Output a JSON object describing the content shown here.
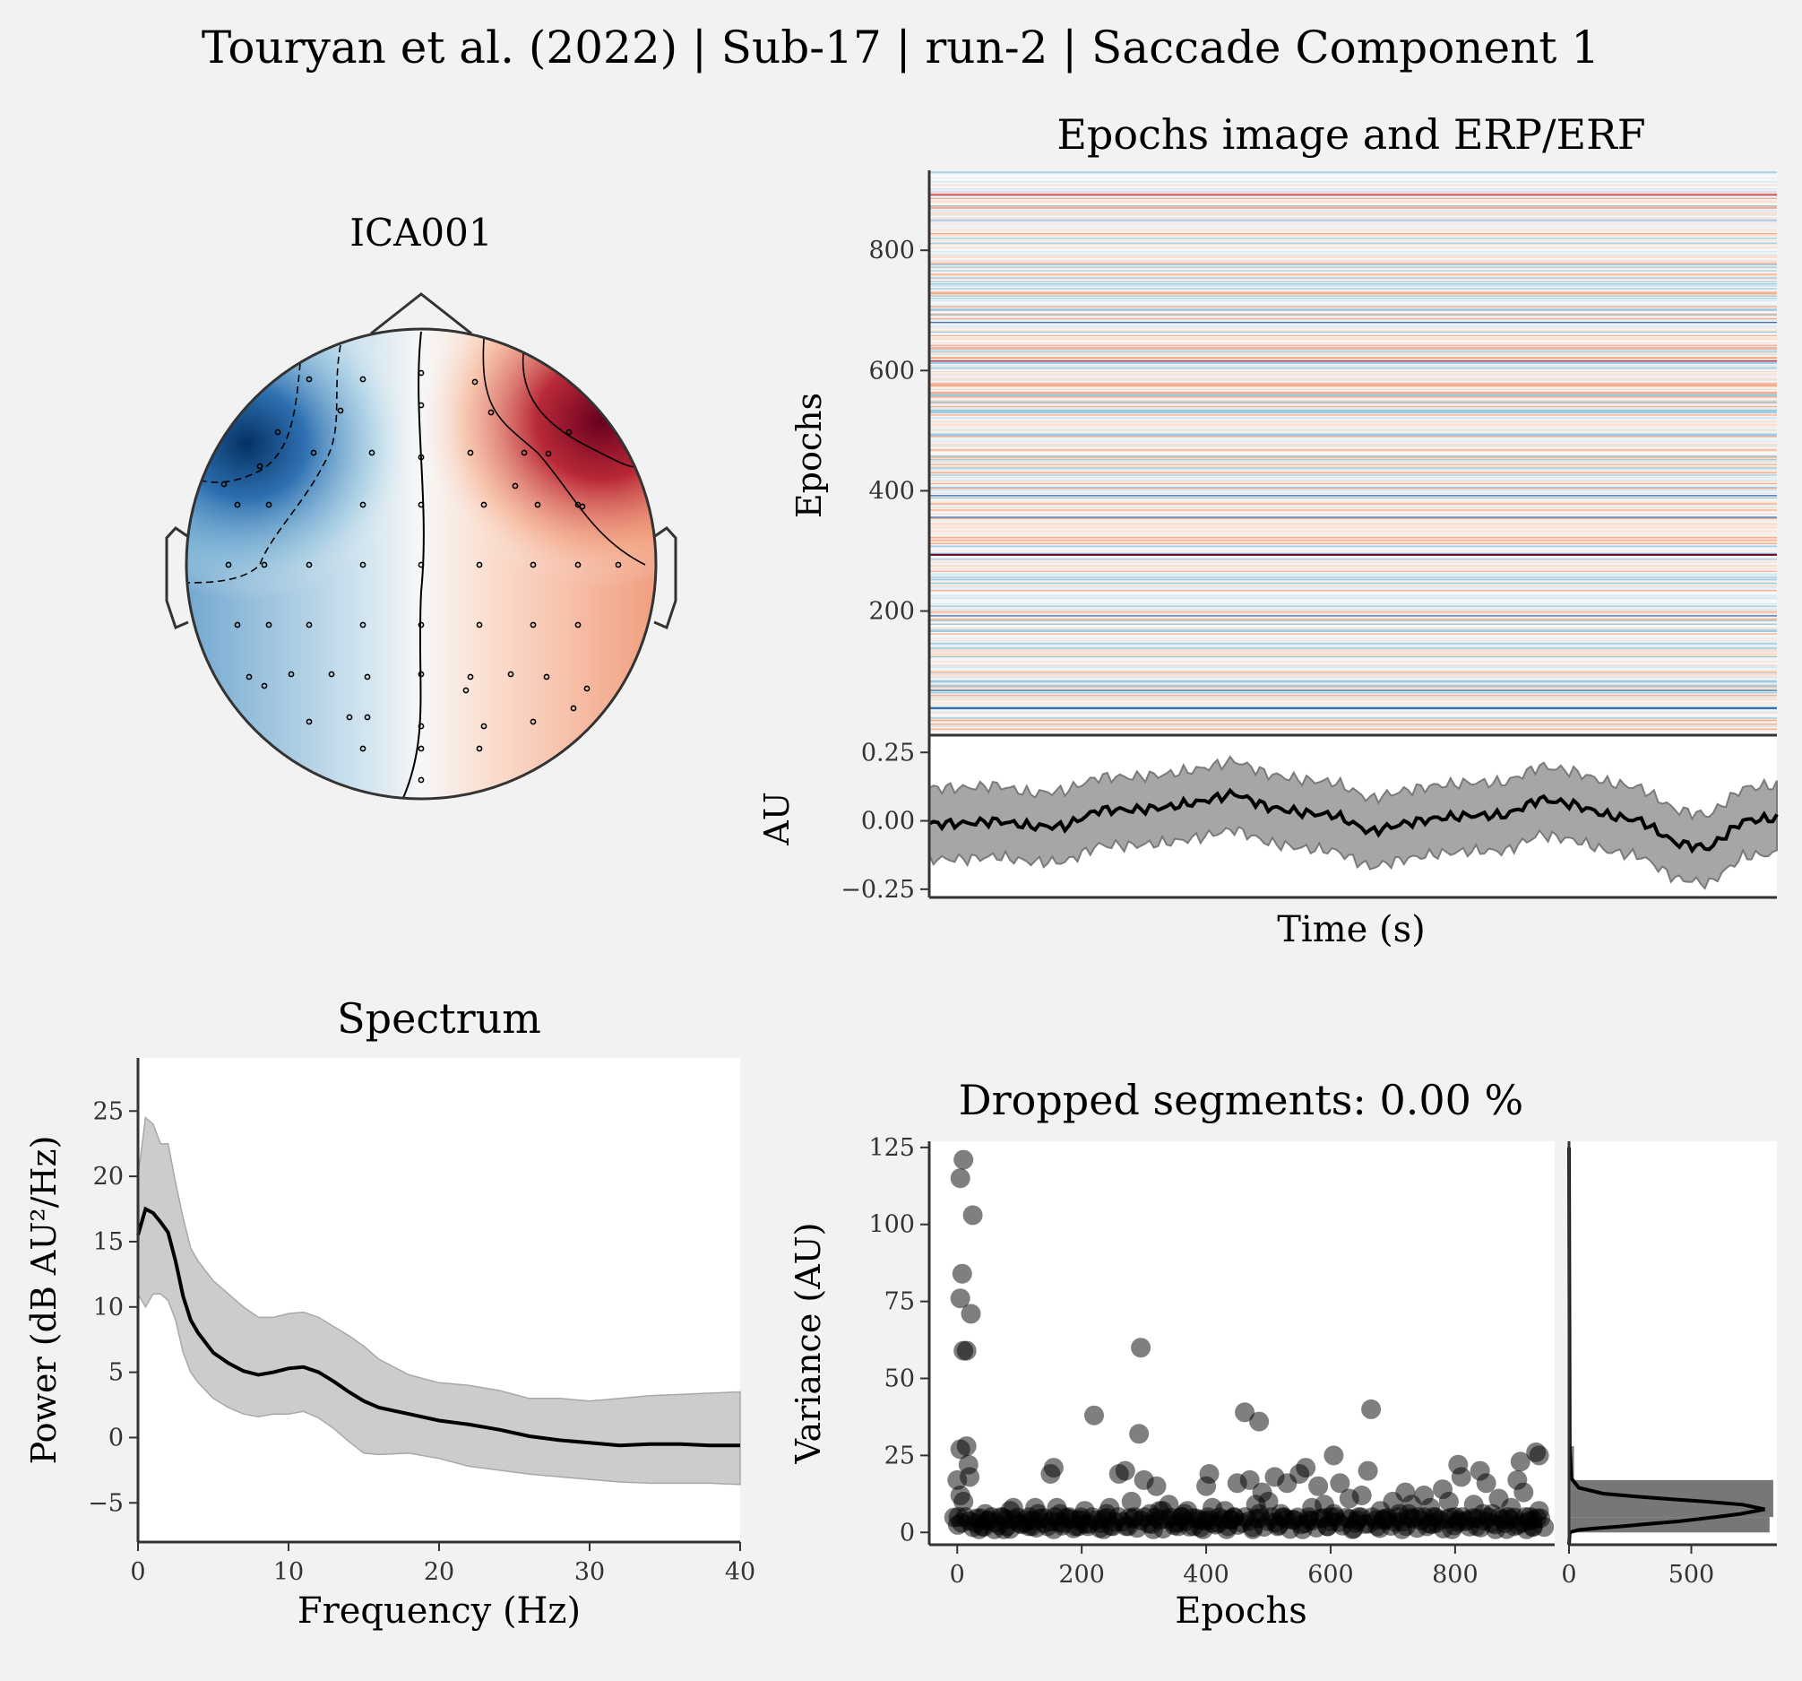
{
  "figure": {
    "suptitle": "Touryan et al. (2022) | Sub-17 | run-2 | Saccade Component 1",
    "background": "#f2f2f2"
  },
  "topomap": {
    "title": "ICA001",
    "colors": {
      "negative": "#053061",
      "neutral": "#f7f7f7",
      "positive": "#67001f"
    }
  },
  "epochs_image": {
    "title": "Epochs image and ERP/ERF",
    "ylabel": "Epochs",
    "yticks": [
      200,
      400,
      600,
      800
    ],
    "n_epochs": 930
  },
  "erp": {
    "ylabel": "AU",
    "xlabel": "Time (s)",
    "yticks": [
      -0.25,
      0.0,
      0.25
    ],
    "ytick_labels": [
      "−0.25",
      "0.00",
      "0.25"
    ],
    "ylim": [
      -0.28,
      0.3
    ]
  },
  "spectrum": {
    "title": "Spectrum",
    "xlabel": "Frequency (Hz)",
    "ylabel": "Power (dB AU²/Hz)",
    "xticks": [
      0,
      10,
      20,
      30,
      40
    ],
    "yticks": [
      -5,
      0,
      5,
      10,
      15,
      20,
      25
    ],
    "ytick_labels": [
      "−5",
      "0",
      "5",
      "10",
      "15",
      "20",
      "25"
    ]
  },
  "variance": {
    "title": "Dropped segments: 0.00 %",
    "xlabel": "Epochs",
    "ylabel": "Variance (AU)",
    "xticks": [
      0,
      200,
      400,
      600,
      800
    ],
    "yticks": [
      0,
      25,
      50,
      75,
      100,
      125
    ],
    "hist_xticks": [
      0,
      500
    ]
  },
  "chart_data": [
    {
      "type": "heatmap",
      "title": "Epochs image and ERP/ERF",
      "ylabel": "Epochs",
      "ylim": [
        1,
        930
      ],
      "colormap": "RdBu_r",
      "values_note_free": true
    },
    {
      "type": "line",
      "title": "",
      "xlabel": "Time (s)",
      "ylabel": "AU",
      "ylim": [
        -0.28,
        0.3
      ],
      "x": [
        0,
        4,
        8,
        12,
        16,
        20,
        24,
        28,
        32,
        36,
        40,
        44,
        48,
        52,
        56,
        60,
        64,
        68,
        72,
        76,
        80,
        84,
        88,
        92,
        96,
        100
      ],
      "series": [
        {
          "name": "",
          "values": [
            -0.01,
            -0.01,
            0.0,
            -0.02,
            -0.02,
            0.04,
            0.04,
            0.05,
            0.07,
            0.1,
            0.05,
            0.03,
            0.02,
            -0.04,
            -0.01,
            0.01,
            0.02,
            0.02,
            0.08,
            0.06,
            0.02,
            0.0,
            -0.08,
            -0.1,
            0.0,
            0.01
          ]
        },
        {
          "name": "",
          "values": [
            0.12,
            0.12,
            0.13,
            0.1,
            0.11,
            0.16,
            0.16,
            0.17,
            0.19,
            0.22,
            0.17,
            0.15,
            0.14,
            0.08,
            0.11,
            0.13,
            0.14,
            0.14,
            0.2,
            0.18,
            0.14,
            0.12,
            0.04,
            0.02,
            0.12,
            0.13
          ]
        },
        {
          "name": "",
          "values": [
            -0.14,
            -0.14,
            -0.13,
            -0.15,
            -0.15,
            -0.09,
            -0.09,
            -0.08,
            -0.06,
            -0.03,
            -0.08,
            -0.1,
            -0.11,
            -0.17,
            -0.14,
            -0.12,
            -0.11,
            -0.11,
            -0.05,
            -0.07,
            -0.11,
            -0.13,
            -0.21,
            -0.23,
            -0.13,
            -0.12
          ]
        }
      ]
    },
    {
      "type": "line",
      "title": "Spectrum",
      "xlabel": "Frequency (Hz)",
      "ylabel": "Power (dB AU²/Hz)",
      "xlim": [
        0,
        40
      ],
      "ylim": [
        -8,
        29
      ],
      "x": [
        0,
        0.5,
        1,
        1.5,
        2,
        2.5,
        3,
        3.5,
        4,
        5,
        6,
        7,
        8,
        9,
        10,
        11,
        12,
        13,
        14,
        15,
        16,
        18,
        20,
        22,
        24,
        26,
        28,
        30,
        32,
        34,
        36,
        38,
        40
      ],
      "series": [
        {
          "name": "",
          "values": [
            15.5,
            17.5,
            17.2,
            16.5,
            15.7,
            13.5,
            10.8,
            9.0,
            8.0,
            6.5,
            5.7,
            5.1,
            4.8,
            5.0,
            5.3,
            5.4,
            5.0,
            4.3,
            3.5,
            2.8,
            2.3,
            1.8,
            1.3,
            1.0,
            0.6,
            0.1,
            -0.2,
            -0.4,
            -0.6,
            -0.5,
            -0.5,
            -0.6,
            -0.6
          ]
        },
        {
          "name": "",
          "values": [
            20,
            24.5,
            24,
            22.5,
            22.5,
            19.5,
            16.8,
            14.5,
            13.5,
            12,
            11,
            10,
            9.2,
            9.2,
            9.5,
            9.6,
            9.2,
            8.5,
            7.8,
            7.0,
            6.0,
            4.8,
            4.2,
            4.0,
            3.6,
            3.0,
            3.0,
            2.8,
            3.0,
            3.2,
            3.3,
            3.4,
            3.5
          ]
        },
        {
          "name": "",
          "values": [
            11,
            10,
            11,
            11,
            10.5,
            9,
            6.5,
            5.0,
            4.2,
            3.0,
            2.3,
            1.8,
            1.6,
            1.8,
            1.8,
            2.0,
            1.5,
            0.7,
            -0.3,
            -1.2,
            -1.3,
            -1.2,
            -1.6,
            -2.2,
            -2.5,
            -2.8,
            -3.0,
            -3.2,
            -3.4,
            -3.5,
            -3.5,
            -3.5,
            -3.6
          ]
        }
      ]
    },
    {
      "type": "scatter",
      "title": "Dropped segments: 0.00 %",
      "xlabel": "Epochs",
      "ylabel": "Variance (AU)",
      "xlim": [
        -45,
        960
      ],
      "ylim": [
        -4,
        127
      ],
      "points": [
        [
          10,
          121
        ],
        [
          5,
          115
        ],
        [
          25,
          103
        ],
        [
          8,
          84
        ],
        [
          5,
          76
        ],
        [
          22,
          71
        ],
        [
          10,
          59
        ],
        [
          15,
          59
        ],
        [
          295,
          60
        ],
        [
          220,
          38
        ],
        [
          292,
          32
        ],
        [
          462,
          39
        ],
        [
          485,
          36
        ],
        [
          665,
          40
        ],
        [
          5,
          27
        ],
        [
          15,
          28
        ],
        [
          18,
          22
        ],
        [
          20,
          18
        ],
        [
          0,
          17
        ],
        [
          10,
          10
        ],
        [
          5,
          12
        ],
        [
          2,
          5
        ],
        [
          30,
          3
        ],
        [
          40,
          2
        ],
        [
          50,
          4
        ],
        [
          60,
          1
        ],
        [
          70,
          5
        ],
        [
          80,
          2
        ],
        [
          90,
          8
        ],
        [
          100,
          3
        ],
        [
          110,
          4
        ],
        [
          120,
          2
        ],
        [
          130,
          6
        ],
        [
          140,
          3
        ],
        [
          150,
          19
        ],
        [
          155,
          21
        ],
        [
          160,
          8
        ],
        [
          170,
          3
        ],
        [
          180,
          5
        ],
        [
          190,
          2
        ],
        [
          200,
          4
        ],
        [
          210,
          2
        ],
        [
          230,
          3
        ],
        [
          240,
          6
        ],
        [
          250,
          2
        ],
        [
          260,
          19
        ],
        [
          270,
          20
        ],
        [
          280,
          10
        ],
        [
          300,
          17
        ],
        [
          310,
          6
        ],
        [
          320,
          15
        ],
        [
          330,
          7
        ],
        [
          340,
          9
        ],
        [
          350,
          3
        ],
        [
          360,
          5
        ],
        [
          370,
          7
        ],
        [
          380,
          2
        ],
        [
          390,
          4
        ],
        [
          400,
          15
        ],
        [
          405,
          19
        ],
        [
          410,
          8
        ],
        [
          420,
          3
        ],
        [
          430,
          7
        ],
        [
          440,
          4
        ],
        [
          450,
          16
        ],
        [
          470,
          17
        ],
        [
          480,
          9
        ],
        [
          490,
          13
        ],
        [
          500,
          10
        ],
        [
          510,
          18
        ],
        [
          520,
          6
        ],
        [
          530,
          16
        ],
        [
          540,
          4
        ],
        [
          550,
          19
        ],
        [
          560,
          21
        ],
        [
          570,
          8
        ],
        [
          580,
          15
        ],
        [
          590,
          9
        ],
        [
          600,
          5
        ],
        [
          605,
          25
        ],
        [
          615,
          16
        ],
        [
          630,
          11
        ],
        [
          640,
          3
        ],
        [
          650,
          12
        ],
        [
          660,
          20
        ],
        [
          680,
          7
        ],
        [
          690,
          4
        ],
        [
          700,
          10
        ],
        [
          710,
          6
        ],
        [
          720,
          13
        ],
        [
          730,
          9
        ],
        [
          740,
          5
        ],
        [
          750,
          12
        ],
        [
          760,
          8
        ],
        [
          770,
          3
        ],
        [
          780,
          14
        ],
        [
          790,
          10
        ],
        [
          800,
          5
        ],
        [
          805,
          22
        ],
        [
          810,
          18
        ],
        [
          820,
          4
        ],
        [
          830,
          9
        ],
        [
          840,
          20
        ],
        [
          850,
          16
        ],
        [
          860,
          6
        ],
        [
          870,
          11
        ],
        [
          880,
          3
        ],
        [
          890,
          8
        ],
        [
          900,
          17
        ],
        [
          905,
          23
        ],
        [
          910,
          13
        ],
        [
          920,
          5
        ],
        [
          930,
          26
        ],
        [
          935,
          25
        ],
        [
          935,
          7
        ],
        [
          925,
          2
        ],
        [
          915,
          1
        ],
        [
          895,
          2
        ],
        [
          865,
          1
        ],
        [
          835,
          2
        ],
        [
          795,
          1
        ],
        [
          755,
          2
        ],
        [
          715,
          1
        ],
        [
          675,
          2
        ],
        [
          635,
          1
        ],
        [
          595,
          2
        ],
        [
          555,
          1
        ],
        [
          515,
          2
        ],
        [
          475,
          1
        ],
        [
          435,
          2
        ],
        [
          395,
          1
        ],
        [
          355,
          2
        ],
        [
          315,
          1
        ],
        [
          275,
          2
        ],
        [
          235,
          1
        ],
        [
          195,
          2
        ],
        [
          155,
          1
        ],
        [
          115,
          2
        ],
        [
          75,
          1
        ],
        [
          35,
          1
        ],
        [
          45,
          6
        ],
        [
          85,
          7
        ],
        [
          125,
          8
        ],
        [
          165,
          6
        ],
        [
          205,
          7
        ],
        [
          245,
          8
        ],
        [
          285,
          5
        ],
        [
          325,
          7
        ],
        [
          365,
          6
        ],
        [
          405,
          4
        ],
        [
          445,
          5
        ],
        [
          485,
          6
        ],
        [
          525,
          5
        ],
        [
          565,
          4
        ],
        [
          605,
          6
        ],
        [
          645,
          5
        ],
        [
          685,
          4
        ],
        [
          725,
          6
        ],
        [
          765,
          5
        ],
        [
          805,
          4
        ],
        [
          845,
          6
        ],
        [
          885,
          5
        ],
        [
          925,
          4
        ]
      ]
    },
    {
      "type": "bar",
      "title": "",
      "xlim": [
        0,
        850
      ],
      "ylim": [
        -4,
        127
      ],
      "bins": [
        [
          0,
          5,
          820
        ],
        [
          5,
          17,
          835
        ],
        [
          17,
          28,
          20
        ]
      ],
      "kde": {
        "x": [
          0,
          3,
          10,
          40,
          120,
          220,
          330,
          450,
          600,
          700,
          800,
          710,
          560,
          420,
          280,
          140,
          40,
          10,
          3,
          0
        ],
        "y": [
          -4,
          0,
          0.2,
          0.8,
          1.4,
          2,
          2.8,
          3.6,
          5,
          6,
          7.5,
          9,
          10,
          10.8,
          11.6,
          12.6,
          14.5,
          17.5,
          27,
          125
        ]
      }
    }
  ]
}
